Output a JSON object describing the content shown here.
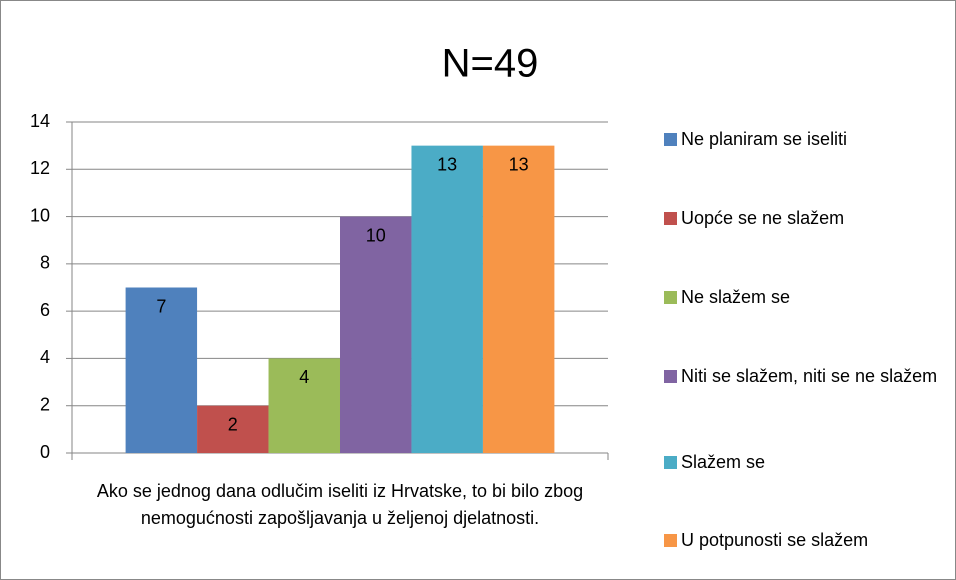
{
  "chart_data": {
    "type": "bar",
    "title": "N=49",
    "categories": [
      "Ako se jednog dana odlučim iseliti iz Hrvatske, to bi bilo zbog nemogućnosti zapošljavanja u željenoj djelatnosti."
    ],
    "series": [
      {
        "name": "Ne planiram se iseliti",
        "color": "#4f81bd",
        "values": [
          7
        ]
      },
      {
        "name": "Uopće se ne slažem",
        "color": "#c0504d",
        "values": [
          2
        ]
      },
      {
        "name": "Ne slažem se",
        "color": "#9bbb59",
        "values": [
          4
        ]
      },
      {
        "name": "Niti se slažem, niti se ne slažem",
        "color": "#8064a2",
        "values": [
          10
        ]
      },
      {
        "name": "Slažem se",
        "color": "#4bacc6",
        "values": [
          13
        ]
      },
      {
        "name": "U potpunosti se slažem",
        "color": "#f79646",
        "values": [
          13
        ]
      }
    ],
    "ylim": [
      0,
      14
    ],
    "yticks": [
      0,
      2,
      4,
      6,
      8,
      10,
      12,
      14
    ],
    "grid": true,
    "legend": "right",
    "data_labels": true
  }
}
